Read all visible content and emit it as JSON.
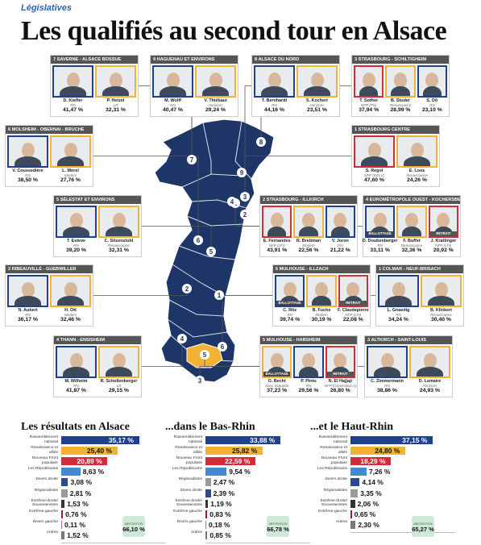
{
  "kicker": "Législatives",
  "headline": "Les qualifiés au second tour en Alsace",
  "colors": {
    "RN": "#1f3f8f",
    "Renaissance": "#f2b233",
    "NFP": "#d42b3a",
    "LR": "#3f8ad2",
    "Regionalistes": "#9a9a9a",
    "Divers": "#6b6b6b",
    "map": "#1e3567",
    "selected": "#f2b233"
  },
  "map_numbers": [
    "7",
    "8",
    "9",
    "3",
    "1",
    "2",
    "4",
    "6",
    "5",
    "2",
    "1",
    "4",
    "6",
    "5",
    "3"
  ],
  "circonscriptions": [
    {
      "header": "7 SAVERNE - ALSACE BOSSUE",
      "candidates": [
        {
          "name": "D. Kieffer",
          "party": "RN",
          "pct": "41,47 %",
          "color": "RN"
        },
        {
          "name": "P. Hetzel",
          "party": "LR",
          "pct": "32,31 %",
          "color": "Renaissance"
        }
      ]
    },
    {
      "header": "9 HAGUENAU ET ENVIRONS",
      "candidates": [
        {
          "name": "M. Wolff",
          "party": "RN",
          "pct": "40,47 %",
          "color": "RN"
        },
        {
          "name": "V. Thiébaut",
          "party": "Horizons",
          "pct": "29,24 %",
          "color": "Renaissance"
        }
      ]
    },
    {
      "header": "8 ALSACE DU NORD",
      "candidates": [
        {
          "name": "T. Bernhardt",
          "party": "RN",
          "pct": "44,16 %",
          "color": "RN"
        },
        {
          "name": "S. Kochert",
          "party": "Horizons",
          "pct": "23,51 %",
          "color": "Renaissance"
        }
      ]
    },
    {
      "header": "3 STRASBOURG - SCHILTIGHEIM",
      "candidates": [
        {
          "name": "T. Sother",
          "party": "NFP (PS)",
          "pct": "37,94 %",
          "color": "NFP"
        },
        {
          "name": "B. Studer",
          "party": "Renaissance",
          "pct": "28,99 %",
          "color": "Renaissance"
        },
        {
          "name": "S. Dô",
          "party": "RN",
          "pct": "23,10 %",
          "color": "RN"
        }
      ]
    },
    {
      "header": "6 MOLSHEIM - OBERNAI - BRUCHE",
      "candidates": [
        {
          "name": "V. Coussedière",
          "party": "RN",
          "pct": "38,50 %",
          "color": "RN"
        },
        {
          "name": "L. Morel",
          "party": "Modem",
          "pct": "27,76 %",
          "color": "Renaissance"
        }
      ]
    },
    {
      "header": "1 STRASBOURG CENTRE",
      "candidates": [
        {
          "name": "S. Regol",
          "party": "NFP (EELV)",
          "pct": "47,60 %",
          "color": "NFP"
        },
        {
          "name": "E. Loos",
          "party": "Renaissance",
          "pct": "24,26 %",
          "color": "Renaissance"
        }
      ]
    },
    {
      "header": "5 SÉLESTAT ET ENVIRONS",
      "candidates": [
        {
          "name": "T. Esteve",
          "party": "RN",
          "pct": "39,20 %",
          "color": "RN"
        },
        {
          "name": "C. Sitzenstuhl",
          "party": "Renaissance",
          "pct": "32,31 %",
          "color": "Renaissance"
        }
      ]
    },
    {
      "header": "2 STRASBOURG - ILLKIRCH",
      "candidates": [
        {
          "name": "E. Fernandes",
          "party": "NFP (LFI)",
          "pct": "43,91 %",
          "color": "NFP"
        },
        {
          "name": "R. Breitman",
          "party": "Modem",
          "pct": "22,56 %",
          "color": "Renaissance"
        },
        {
          "name": "V. Joron",
          "party": "RN",
          "pct": "21,22 %",
          "color": "RN"
        }
      ]
    },
    {
      "header": "4 EUROMÉTROPOLE OUEST - KOCHERSBERG",
      "candidates": [
        {
          "name": "D. Doubenberger",
          "party": "RN",
          "pct": "33,11 %",
          "color": "RN",
          "tag": "BALLOTTAGE"
        },
        {
          "name": "F. Buffet",
          "party": "Renaissance",
          "pct": "32,36 %",
          "color": "Renaissance"
        },
        {
          "name": "J. Krattinger",
          "party": "NFP (LFI)",
          "pct": "20,92 %",
          "color": "NFP",
          "tag": "RETRAIT"
        }
      ]
    },
    {
      "header": "2 RIBEAUVILLÉ - GUEBWILLER",
      "candidates": [
        {
          "name": "N. Aubert",
          "party": "RN",
          "pct": "36,17 %",
          "color": "RN"
        },
        {
          "name": "H. Ott",
          "party": "Modem",
          "pct": "32,46 %",
          "color": "Renaissance"
        }
      ]
    },
    {
      "header": "6 MULHOUSE - ILLZACH",
      "candidates": [
        {
          "name": "C. Ritz",
          "party": "RN",
          "pct": "39,74 %",
          "color": "RN",
          "tag": "BALLOTTAGE"
        },
        {
          "name": "B. Fuchs",
          "party": "Modem",
          "pct": "30,19 %",
          "color": "Renaissance"
        },
        {
          "name": "F. Claudepierre",
          "party": "NFP (LFI)",
          "pct": "22,08 %",
          "color": "NFP",
          "tag": "RETRAIT"
        }
      ]
    },
    {
      "header": "1 COLMAR - NEUF-BRISACH",
      "candidates": [
        {
          "name": "L. Gnaedig",
          "party": "RN",
          "pct": "34,24 %",
          "color": "RN"
        },
        {
          "name": "B. Klinkert",
          "party": "Renaissance",
          "pct": "30,40 %",
          "color": "Renaissance"
        }
      ]
    },
    {
      "header": "4 THANN - ENSISHEIM",
      "candidates": [
        {
          "name": "M. Wilhelm",
          "party": "RN",
          "pct": "41,87 %",
          "color": "RN"
        },
        {
          "name": "R. Schellenberger",
          "party": "LR",
          "pct": "29,15 %",
          "color": "Renaissance"
        }
      ]
    },
    {
      "header": "5 MULHOUSE - HABSHEIM",
      "candidates": [
        {
          "name": "O. Becht",
          "party": "Sans étiquette",
          "pct": "37,23 %",
          "color": "Renaissance",
          "tag": "BALLOTTAGE"
        },
        {
          "name": "P. Pinto",
          "party": "RN",
          "pct": "29,56 %",
          "color": "RN"
        },
        {
          "name": "N. El Hajjaji",
          "party": "NFP (Génération.s)",
          "pct": "26,80 %",
          "color": "NFP",
          "tag": "RETRAIT"
        }
      ]
    },
    {
      "header": "3 ALTKIRCH - SAINT-LOUIS",
      "candidates": [
        {
          "name": "C. Zimmermann",
          "party": "RN",
          "pct": "38,86 %",
          "color": "RN"
        },
        {
          "name": "D. Lemaire",
          "party": "Horizons",
          "pct": "24,93 %",
          "color": "Renaissance"
        }
      ]
    }
  ],
  "chart_data": [
    {
      "type": "bar",
      "title": "Les résultats en Alsace",
      "categories": [
        "Rassemblement national",
        "Renaissance et alliés",
        "Nouveau Front populaire",
        "Les Républicains",
        "Divers droite",
        "Régionalistes",
        "Extrême-droite/ Souverainistes",
        "Extrême-gauche",
        "Divers gauche",
        "Autres"
      ],
      "values": [
        35.17,
        25.4,
        20.89,
        8.63,
        3.08,
        2.81,
        1.53,
        0.76,
        0.11,
        1.52
      ],
      "labels": [
        "35,17 %",
        "25,40 %",
        "20,89 %",
        "8,63 %",
        "3,08 %",
        "2,81 %",
        "1,53 %",
        "0,76 %",
        "0,11 %",
        "1,52 %"
      ],
      "colors": [
        "#1f3f8f",
        "#f2b233",
        "#d42b3a",
        "#3f8ad2",
        "#2b4a8f",
        "#9a9a9a",
        "#333333",
        "#a11a22",
        "#d66b73",
        "#777777"
      ],
      "abstention_label": "ABSTENTION",
      "abstention": "66,10 %"
    },
    {
      "type": "bar",
      "title": "...dans le Bas-Rhin",
      "categories": [
        "Rassemblement national",
        "Renaissance et alliés",
        "Nouveau Front populaire",
        "Les Républicains",
        "Régionalistes",
        "Divers droite",
        "Extrême-droite/ Souverainistes",
        "Extrême-gauche",
        "Divers gauche",
        "Autres"
      ],
      "values": [
        33.88,
        25.82,
        22.59,
        9.54,
        2.47,
        2.39,
        1.19,
        0.83,
        0.18,
        0.85
      ],
      "labels": [
        "33,88 %",
        "25,82 %",
        "22,59 %",
        "9,54 %",
        "2,47 %",
        "2,39 %",
        "1,19 %",
        "0,83 %",
        "0,18 %",
        "0,85 %"
      ],
      "colors": [
        "#1f3f8f",
        "#f2b233",
        "#d42b3a",
        "#3f8ad2",
        "#9a9a9a",
        "#2b4a8f",
        "#333333",
        "#a11a22",
        "#d66b73",
        "#777777"
      ],
      "abstention_label": "ABSTENTION",
      "abstention": "66,78 %"
    },
    {
      "type": "bar",
      "title": "...et le Haut-Rhin",
      "categories": [
        "Rassemblement national",
        "Renaissance et alliés",
        "Nouveau Front populaire",
        "Les Républicains",
        "Divers droite",
        "Régionalistes",
        "Extrême-droite/ Souverainistes",
        "Extrême-gauche",
        "Autres"
      ],
      "values": [
        37.15,
        24.8,
        18.29,
        7.26,
        4.14,
        3.35,
        2.06,
        0.65,
        2.3
      ],
      "labels": [
        "37,15 %",
        "24,80 %",
        "18,29 %",
        "7,26 %",
        "4,14 %",
        "3,35 %",
        "2,06 %",
        "0,65 %",
        "2,30 %"
      ],
      "colors": [
        "#1f3f8f",
        "#f2b233",
        "#d42b3a",
        "#3f8ad2",
        "#2b4a8f",
        "#9a9a9a",
        "#333333",
        "#a11a22",
        "#777777"
      ],
      "abstention_label": "ABSTENTION",
      "abstention": "65,27 %"
    }
  ]
}
